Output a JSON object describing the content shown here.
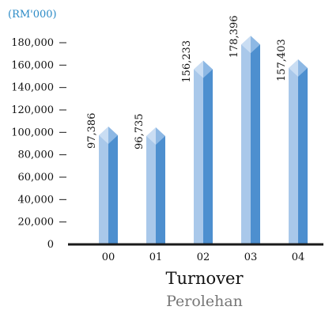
{
  "unit_label": "(RM'000)",
  "title": "Turnover",
  "subtitle": "Perolehan",
  "colors": {
    "bar_light": "#a9c8ea",
    "bar_dark": "#4d8fcf",
    "bar_top_light": "#c9ddf3",
    "bar_top_dark": "#8db8e4",
    "axis": "#1a1a1a",
    "unit_text": "#2a8ac6"
  },
  "chart_data": {
    "type": "bar",
    "categories": [
      "00",
      "01",
      "02",
      "03",
      "04"
    ],
    "values": [
      97386,
      96735,
      156233,
      178396,
      157403
    ],
    "value_labels": [
      "97,386",
      "96,735",
      "156,233",
      "178,396",
      "157,403"
    ],
    "y_ticks": [
      "0",
      "20,000",
      "40,000",
      "60,000",
      "80,000",
      "100,000",
      "120,000",
      "140,000",
      "160,000",
      "180,000"
    ],
    "ylim": [
      0,
      180000
    ],
    "xlabel": "",
    "ylabel": "(RM'000)",
    "grid": false,
    "legend": "none"
  }
}
